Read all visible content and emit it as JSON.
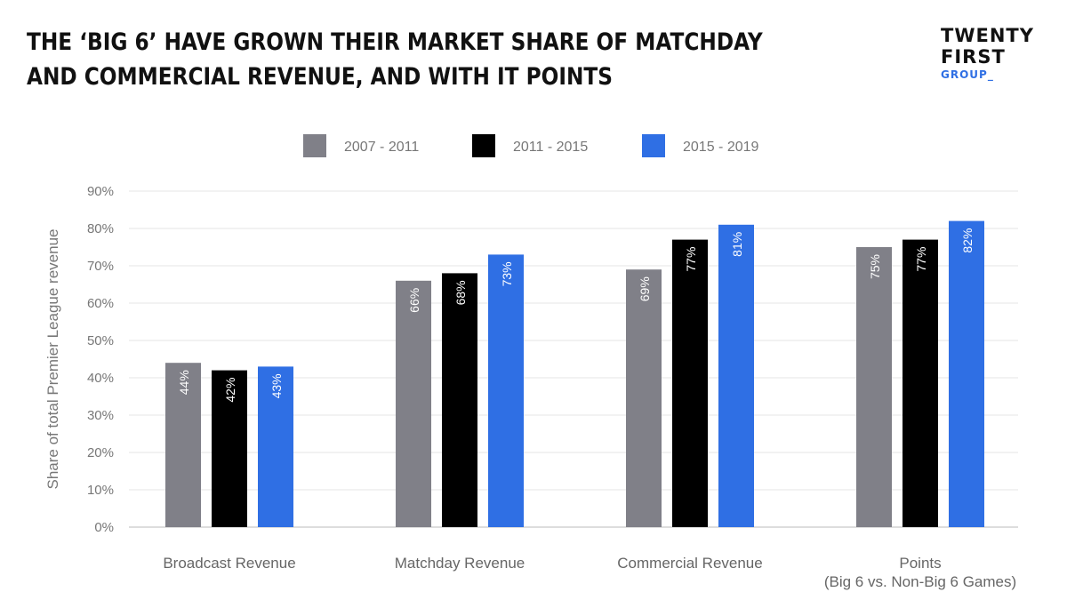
{
  "header": {
    "title_line1": "THE ‘BIG 6’ HAVE GROWN THEIR MARKET SHARE OF MATCHDAY",
    "title_line2": "AND COMMERCIAL REVENUE, AND WITH IT POINTS"
  },
  "logo": {
    "line1": "TWENTY",
    "line2": "FIRST",
    "line3": "GROUP_"
  },
  "chart_data": {
    "type": "bar",
    "title": "THE ‘BIG 6’ HAVE GROWN THEIR MARKET SHARE OF MATCHDAY AND COMMERCIAL REVENUE, AND WITH IT POINTS",
    "ylabel": "Share of total Premier League revenue",
    "xlabel": "",
    "ylim": [
      0,
      90
    ],
    "yticks": [
      "0%",
      "10%",
      "20%",
      "30%",
      "40%",
      "50%",
      "60%",
      "70%",
      "80%",
      "90%"
    ],
    "categories": [
      [
        "Broadcast Revenue"
      ],
      [
        "Matchday Revenue"
      ],
      [
        "Commercial Revenue"
      ],
      [
        "Points",
        "(Big 6 vs. Non-Big 6 Games)"
      ]
    ],
    "series": [
      {
        "name": "2007 - 2011",
        "color": "#808088",
        "values": [
          44,
          66,
          69,
          75
        ]
      },
      {
        "name": "2011 - 2015",
        "color": "#000000",
        "values": [
          42,
          68,
          77,
          77
        ]
      },
      {
        "name": "2015 - 2019",
        "color": "#2f6fe4",
        "values": [
          43,
          73,
          81,
          82
        ]
      }
    ],
    "legend": "top-center",
    "grid": true
  }
}
